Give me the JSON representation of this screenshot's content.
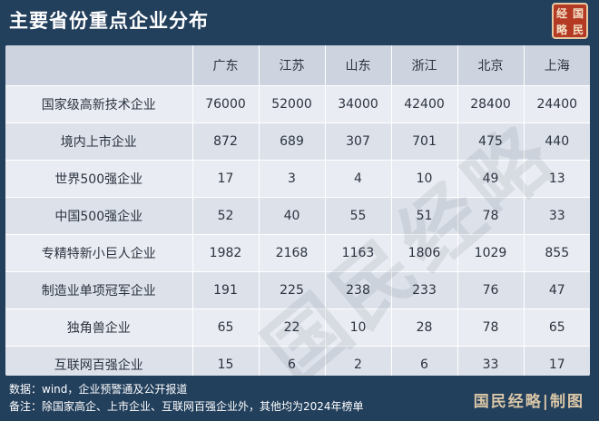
{
  "title": "主要省份重点企业分布",
  "seal_text": [
    "经",
    "国",
    "略",
    "民"
  ],
  "watermark": "国民经略",
  "table": {
    "columns": [
      "广东",
      "江苏",
      "山东",
      "浙江",
      "北京",
      "上海"
    ],
    "rows": [
      {
        "label": "国家级高新技术企业",
        "values": [
          "76000",
          "52000",
          "34000",
          "42400",
          "28400",
          "24400"
        ]
      },
      {
        "label": "境内上市企业",
        "values": [
          "872",
          "689",
          "307",
          "701",
          "475",
          "440"
        ]
      },
      {
        "label": "世界500强企业",
        "values": [
          "17",
          "3",
          "4",
          "10",
          "49",
          "13"
        ]
      },
      {
        "label": "中国500强企业",
        "values": [
          "52",
          "40",
          "55",
          "51",
          "78",
          "33"
        ]
      },
      {
        "label": "专精特新小巨人企业",
        "values": [
          "1982",
          "2168",
          "1163",
          "1806",
          "1029",
          "855"
        ]
      },
      {
        "label": "制造业单项冠军企业",
        "values": [
          "191",
          "225",
          "238",
          "233",
          "76",
          "47"
        ]
      },
      {
        "label": "独角兽企业",
        "values": [
          "65",
          "22",
          "10",
          "28",
          "78",
          "65"
        ]
      },
      {
        "label": "互联网百强企业",
        "values": [
          "15",
          "6",
          "2",
          "6",
          "33",
          "17"
        ]
      }
    ]
  },
  "footer": {
    "source": "数据：wind，企业预警通及公开报道",
    "note": "备注：除国家高企、上市企业、互联网百强企业外，其他均为2024年榜单",
    "brand": "国民经略|制图"
  },
  "colors": {
    "background": "#223f5c",
    "table_header": "#cdd4e0",
    "row_light": "#e9ecf2",
    "row_dark": "#dde2ea",
    "seal": "#b53a24",
    "brand": "#d9c6a6"
  }
}
